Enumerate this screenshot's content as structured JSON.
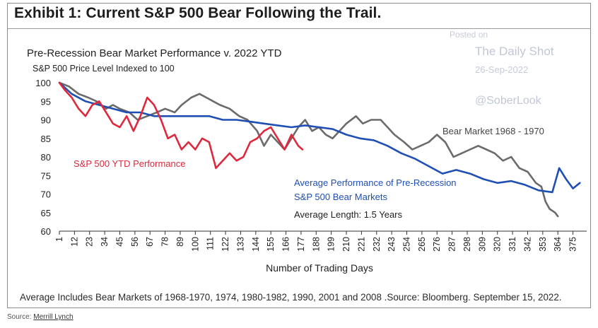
{
  "exhibit_title": "Exhibit 1: Current S&P 500 Bear Following the Trail.",
  "watermark": {
    "posted": "Posted on",
    "site": "The Daily Shot",
    "date": "26-Sep-2022",
    "handle": "@SoberLook"
  },
  "footnote": "Average Includes Bear Markets of 1968-1970, 1974, 1980-1982, 1990, 2001 and 2008 .Source: Bloomberg. September 15, 2022.",
  "source": {
    "label": "Source:",
    "link": "Merrill Lynch"
  },
  "colors": {
    "ytd": "#e0283c",
    "average": "#1f4fb4",
    "bear1968": "#6b6b6b"
  },
  "chart_data": {
    "type": "line",
    "title": "Pre-Recession Bear Market Performance v. 2022 YTD",
    "subtitle": "S&P 500 Price Level Indexed to 100",
    "xlabel": "Number of Trading Days",
    "ylabel": "",
    "xlim": [
      1,
      385
    ],
    "ylim": [
      60,
      100
    ],
    "yticks": [
      100,
      95,
      90,
      85,
      80,
      75,
      70,
      65,
      60
    ],
    "xticks": [
      "1",
      "12",
      "23",
      "34",
      "45",
      "56",
      "67",
      "78",
      "89",
      "100",
      "111",
      "122",
      "133",
      "144",
      "155",
      "166",
      "177",
      "188",
      "199",
      "210",
      "221",
      "232",
      "243",
      "254",
      "265",
      "276",
      "287",
      "298",
      "309",
      "320",
      "331",
      "342",
      "353",
      "364",
      "375"
    ],
    "annotations": {
      "ytd": "S&P 500 YTD Performance",
      "bear1968": "Bear Market 1968 - 1970",
      "average_line1": "Average Performance of Pre-Recession",
      "average_line2": "S&P 500 Bear Markets",
      "avg_length": "Average Length: 1.5 Years"
    },
    "series": [
      {
        "name": "S&P 500 YTD Performance",
        "color": "#e0283c",
        "x": [
          1,
          5,
          10,
          15,
          20,
          25,
          30,
          35,
          40,
          45,
          50,
          55,
          60,
          65,
          70,
          75,
          80,
          85,
          90,
          95,
          100,
          105,
          110,
          115,
          120,
          125,
          130,
          135,
          140,
          145,
          150,
          155,
          160,
          165,
          170,
          175,
          178
        ],
        "y": [
          100,
          98,
          96,
          93,
          91,
          94,
          95,
          92,
          89,
          88,
          91,
          87,
          91,
          96,
          94,
          90,
          85,
          86,
          82,
          84,
          82,
          85,
          84,
          77,
          79,
          81,
          79,
          80,
          84,
          85,
          87,
          88,
          85,
          82,
          86,
          83,
          82
        ]
      },
      {
        "name": "Average Performance of Pre-Recession S&P 500 Bear Markets",
        "color": "#1f4fb4",
        "x": [
          1,
          10,
          20,
          30,
          40,
          50,
          60,
          70,
          80,
          90,
          100,
          110,
          120,
          130,
          140,
          150,
          160,
          170,
          180,
          190,
          200,
          210,
          220,
          230,
          240,
          250,
          260,
          270,
          280,
          290,
          300,
          310,
          320,
          330,
          340,
          350,
          360,
          365,
          370,
          375,
          380
        ],
        "y": [
          100,
          97,
          95,
          94,
          93,
          92,
          92,
          91,
          91,
          91,
          91,
          91,
          90,
          90,
          89.5,
          89,
          88.5,
          88,
          88.5,
          88,
          87.5,
          86,
          85,
          84.5,
          83,
          81,
          79.5,
          77.5,
          75.5,
          76.5,
          75.5,
          74,
          73,
          73.5,
          72.5,
          71,
          70.5,
          77,
          74,
          71.5,
          73
        ]
      },
      {
        "name": "Bear Market 1968 - 1970",
        "color": "#6b6b6b",
        "x": [
          1,
          8,
          15,
          22,
          28,
          35,
          40,
          45,
          52,
          58,
          65,
          72,
          78,
          85,
          90,
          97,
          103,
          108,
          113,
          118,
          125,
          132,
          138,
          145,
          150,
          155,
          160,
          165,
          170,
          175,
          180,
          185,
          190,
          195,
          200,
          205,
          210,
          217,
          222,
          228,
          235,
          240,
          245,
          252,
          258,
          264,
          270,
          276,
          282,
          288,
          294,
          300,
          306,
          312,
          318,
          324,
          330,
          336,
          342,
          348,
          352,
          355,
          358,
          362,
          364
        ],
        "y": [
          100,
          99,
          97,
          96,
          95,
          93,
          94,
          93,
          92,
          90,
          91,
          92,
          93,
          92,
          94,
          96,
          97,
          96,
          95,
          94,
          93,
          91,
          90,
          87,
          83,
          86,
          84,
          82,
          85,
          88,
          90,
          87,
          88,
          86,
          85,
          87,
          89,
          91,
          89,
          90,
          90,
          88,
          86,
          84,
          82,
          83,
          84,
          86,
          84,
          80,
          81,
          82,
          83,
          82,
          81,
          79,
          80,
          77,
          76,
          73,
          72,
          68,
          66,
          65,
          64
        ]
      }
    ]
  }
}
